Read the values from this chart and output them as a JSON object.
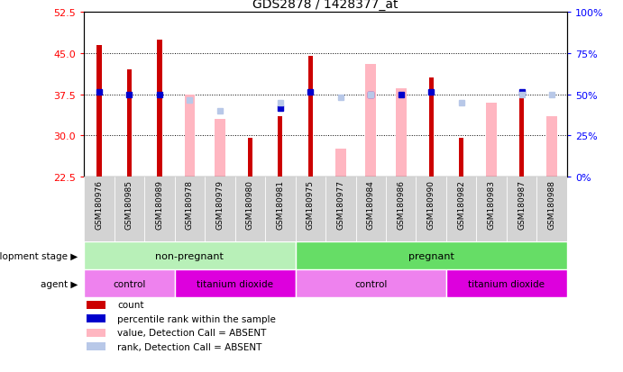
{
  "title": "GDS2878 / 1428377_at",
  "samples": [
    "GSM180976",
    "GSM180985",
    "GSM180989",
    "GSM180978",
    "GSM180979",
    "GSM180980",
    "GSM180981",
    "GSM180975",
    "GSM180977",
    "GSM180984",
    "GSM180986",
    "GSM180990",
    "GSM180982",
    "GSM180983",
    "GSM180987",
    "GSM180988"
  ],
  "count_values": [
    46.5,
    42.0,
    47.5,
    null,
    null,
    29.5,
    33.5,
    44.5,
    null,
    null,
    null,
    40.5,
    29.5,
    null,
    38.0,
    null
  ],
  "percentile_values": [
    38.0,
    37.5,
    37.5,
    null,
    null,
    null,
    35.0,
    38.0,
    null,
    37.5,
    37.5,
    38.0,
    null,
    null,
    38.0,
    null
  ],
  "absent_value_values": [
    null,
    null,
    null,
    37.5,
    33.0,
    null,
    null,
    null,
    27.5,
    43.0,
    38.5,
    null,
    null,
    36.0,
    null,
    33.5
  ],
  "absent_rank_values": [
    null,
    null,
    null,
    36.5,
    34.5,
    null,
    36.0,
    null,
    37.0,
    37.5,
    null,
    null,
    36.0,
    null,
    37.5,
    37.5
  ],
  "ylim_left": [
    22.5,
    52.5
  ],
  "ylim_right": [
    0,
    100
  ],
  "yticks_left": [
    22.5,
    30,
    37.5,
    45,
    52.5
  ],
  "yticks_right": [
    0,
    25,
    50,
    75,
    100
  ],
  "dev_stage_groups": [
    {
      "label": "non-pregnant",
      "start": 0,
      "end": 7,
      "color": "#B8F0B8"
    },
    {
      "label": "pregnant",
      "start": 7,
      "end": 16,
      "color": "#66DD66"
    }
  ],
  "agent_groups": [
    {
      "label": "control",
      "start": 0,
      "end": 3,
      "color": "#EE82EE"
    },
    {
      "label": "titanium dioxide",
      "start": 3,
      "end": 7,
      "color": "#DD00DD"
    },
    {
      "label": "control",
      "start": 7,
      "end": 12,
      "color": "#EE82EE"
    },
    {
      "label": "titanium dioxide",
      "start": 12,
      "end": 16,
      "color": "#DD00DD"
    }
  ],
  "count_color": "#CC0000",
  "percentile_color": "#0000CC",
  "absent_value_color": "#FFB6C1",
  "absent_rank_color": "#B8C8E8",
  "tick_area_color": "#D3D3D3",
  "dev_stage_label": "development stage",
  "agent_label": "agent"
}
